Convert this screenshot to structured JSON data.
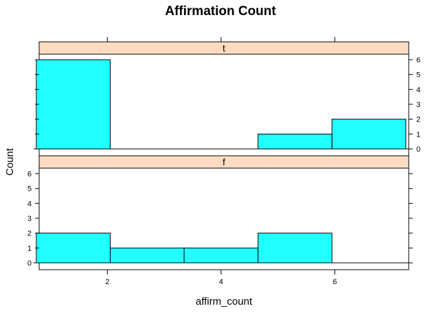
{
  "chart_data": {
    "type": "bar",
    "title": "Affirmation Count",
    "xlabel": "affirm_count",
    "ylabel": "Count",
    "xlim": [
      0.8,
      7.3
    ],
    "ylim": [
      0,
      6
    ],
    "x_ticks": [
      2,
      4,
      6
    ],
    "y_ticks": [
      0,
      1,
      2,
      3,
      4,
      5,
      6
    ],
    "bar_color": "#22ffff",
    "strip_color": "#ffdcc1",
    "bins": [
      [
        0.75,
        2.05
      ],
      [
        2.05,
        3.35
      ],
      [
        3.35,
        4.65
      ],
      [
        4.65,
        5.95
      ],
      [
        5.95,
        7.25
      ]
    ],
    "panels": [
      {
        "label": "t",
        "values": [
          6,
          0,
          0,
          1,
          2
        ]
      },
      {
        "label": "f",
        "values": [
          2,
          1,
          1,
          2,
          0
        ]
      }
    ]
  }
}
